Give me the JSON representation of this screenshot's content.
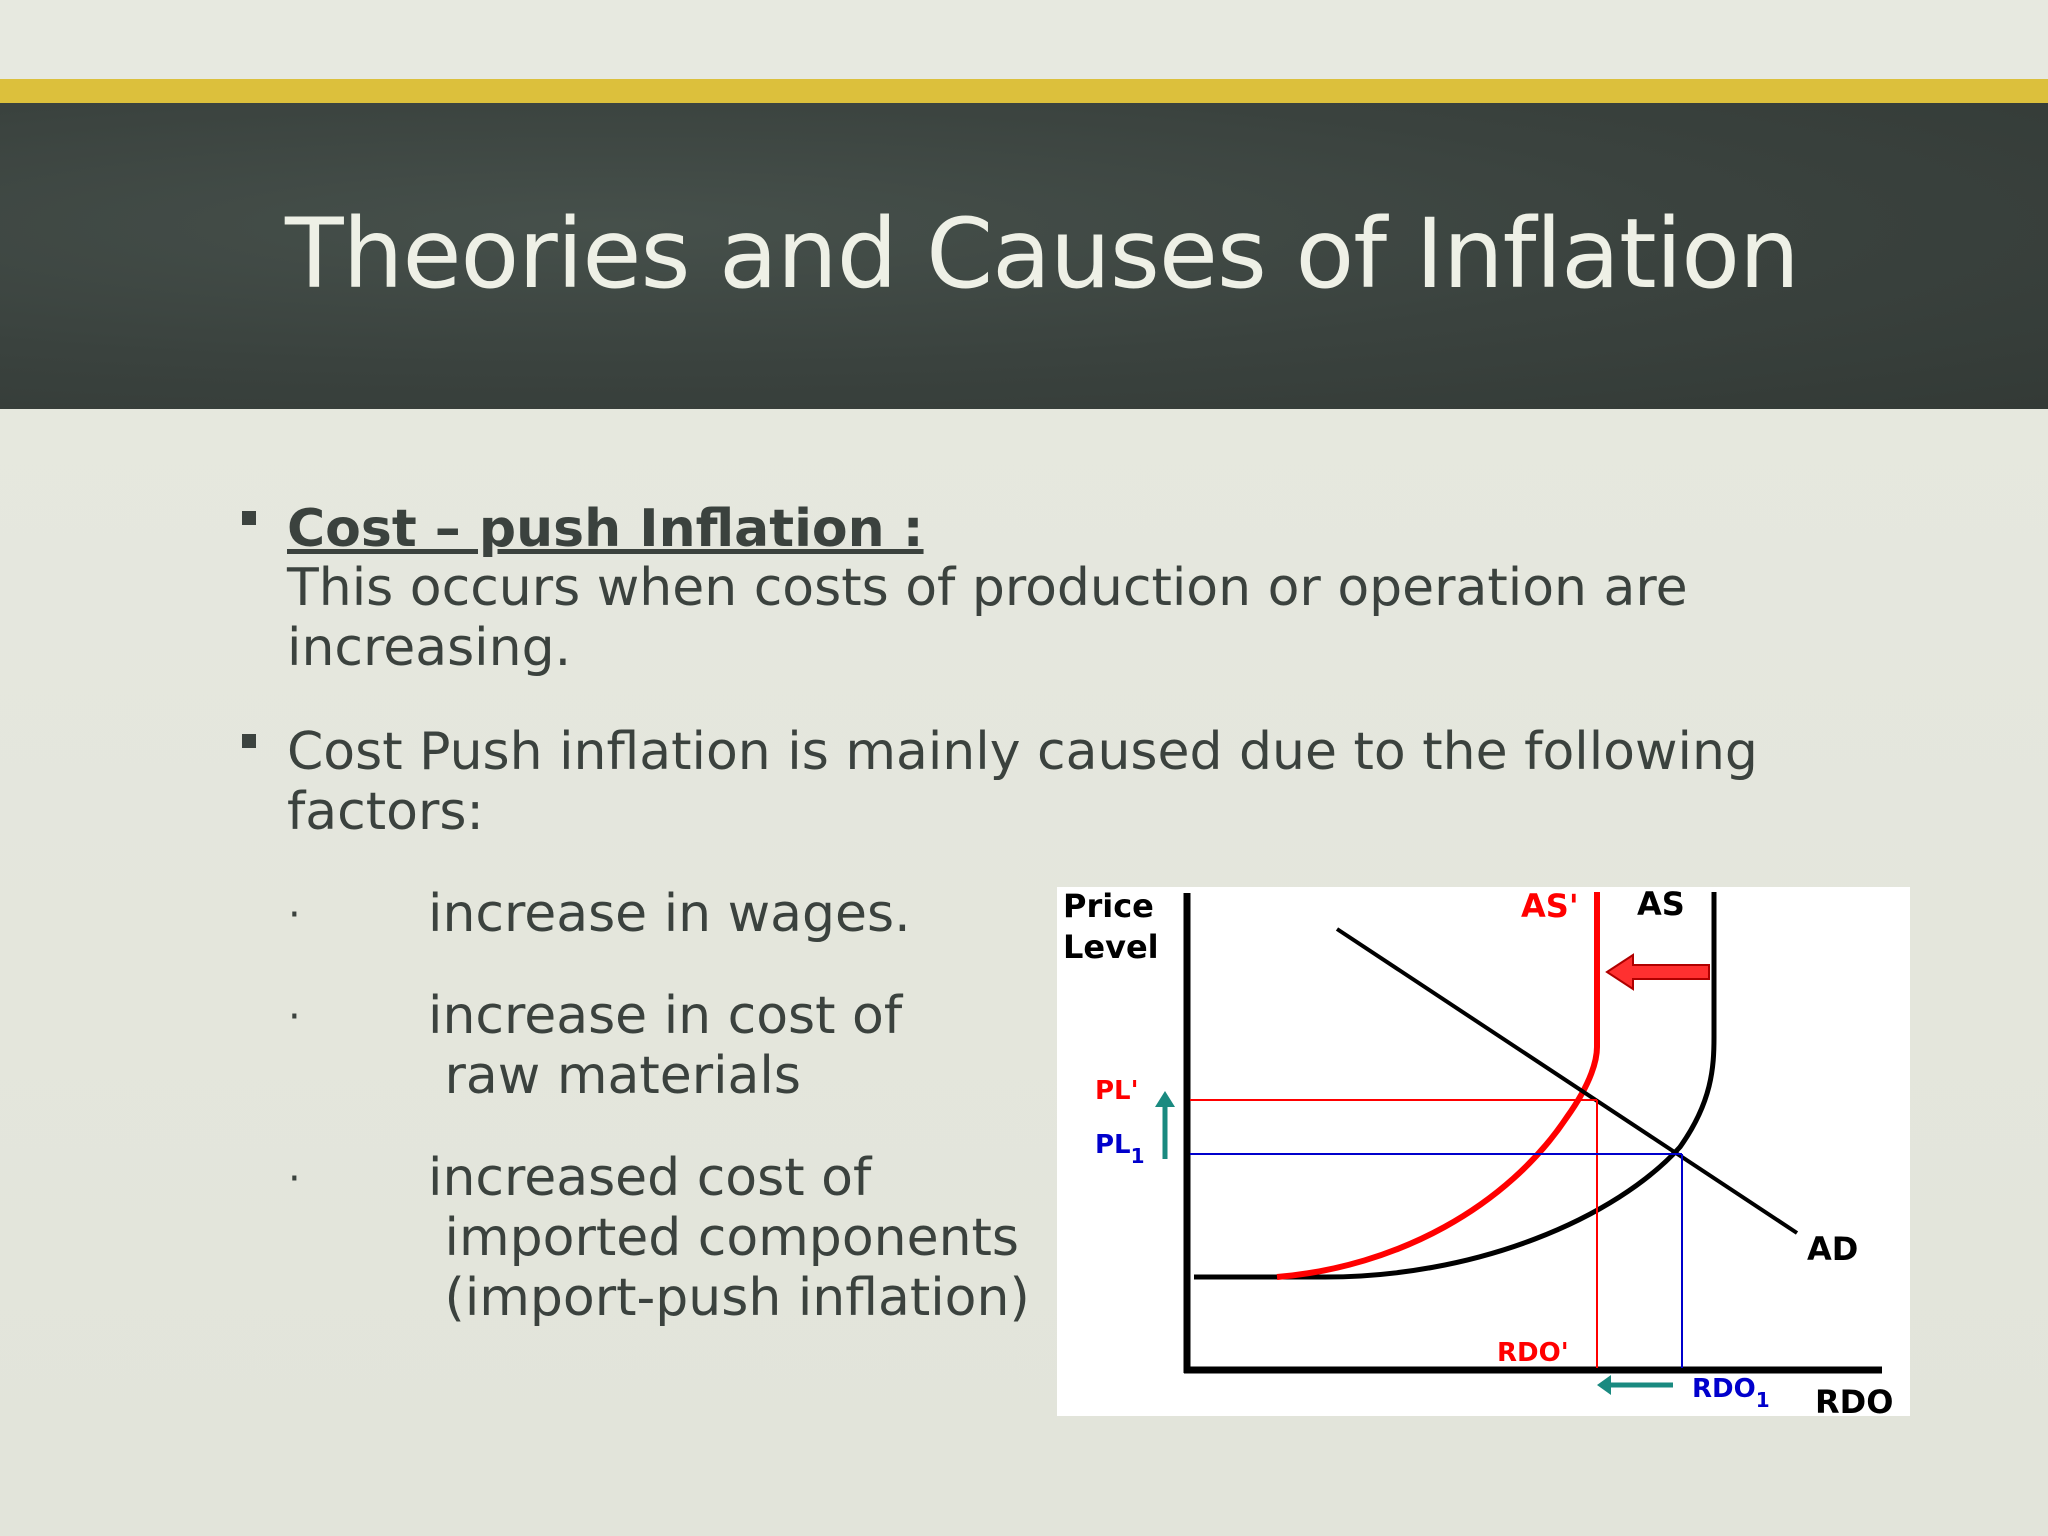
{
  "slide": {
    "title": "Theories and Causes of Inflation",
    "bullets": [
      {
        "heading": "Cost – push Inflation :",
        "lines": [
          "This occurs when costs of production or operation are",
          "increasing."
        ]
      },
      {
        "lines": [
          "Cost Push inflation is mainly caused due to the following",
          "factors:"
        ]
      }
    ],
    "factors": [
      {
        "dot": "·",
        "lines": [
          "increase in wages."
        ]
      },
      {
        "dot": "·",
        "lines": [
          "increase in cost of",
          " raw materials"
        ]
      },
      {
        "dot": "·",
        "lines": [
          "increased cost of",
          " imported components",
          " (import-push inflation)"
        ]
      }
    ]
  },
  "chart_data": {
    "type": "line",
    "y_axis_label": [
      "Price",
      "Level"
    ],
    "x_axis_label": "RDO",
    "curves": [
      "AS'",
      "AS",
      "AD"
    ],
    "price_levels": [
      "PL'",
      "PL1"
    ],
    "output_levels": [
      "RDO'",
      "RDO1"
    ],
    "colors": {
      "shifted": "#ff0000",
      "original": "#000000",
      "equilibrium_lines": "#0000cc",
      "arrows": "#1a8a80"
    }
  }
}
